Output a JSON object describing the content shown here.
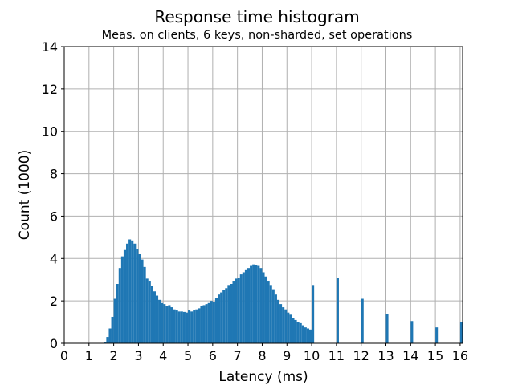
{
  "chart_data": {
    "type": "bar",
    "title": "Response time histogram",
    "subtitle": "Meas. on clients, 6 keys, non-sharded, set operations",
    "xlabel": "Latency (ms)",
    "ylabel": "Count (1000)",
    "xlim": [
      0,
      16.1
    ],
    "ylim": [
      0,
      14
    ],
    "grid": true,
    "x_ticks": [
      "0",
      "1",
      "2",
      "3",
      "4",
      "5",
      "6",
      "7",
      "8",
      "9",
      "10",
      "11",
      "12",
      "13",
      "14",
      "15",
      "16"
    ],
    "y_ticks": [
      "0",
      "2",
      "4",
      "6",
      "8",
      "10",
      "12",
      "14"
    ],
    "bin_width_ms": 0.1,
    "bins": [
      {
        "x": 1.6,
        "y": 0.05
      },
      {
        "x": 1.7,
        "y": 0.3
      },
      {
        "x": 1.8,
        "y": 0.7
      },
      {
        "x": 1.9,
        "y": 1.25
      },
      {
        "x": 2.0,
        "y": 2.1
      },
      {
        "x": 2.1,
        "y": 2.8
      },
      {
        "x": 2.2,
        "y": 3.55
      },
      {
        "x": 2.3,
        "y": 4.1
      },
      {
        "x": 2.4,
        "y": 4.4
      },
      {
        "x": 2.5,
        "y": 4.7
      },
      {
        "x": 2.6,
        "y": 4.9
      },
      {
        "x": 2.7,
        "y": 4.85
      },
      {
        "x": 2.8,
        "y": 4.7
      },
      {
        "x": 2.9,
        "y": 4.45
      },
      {
        "x": 3.0,
        "y": 4.2
      },
      {
        "x": 3.1,
        "y": 3.95
      },
      {
        "x": 3.2,
        "y": 3.6
      },
      {
        "x": 3.3,
        "y": 3.05
      },
      {
        "x": 3.4,
        "y": 2.95
      },
      {
        "x": 3.5,
        "y": 2.7
      },
      {
        "x": 3.6,
        "y": 2.45
      },
      {
        "x": 3.7,
        "y": 2.25
      },
      {
        "x": 3.8,
        "y": 2.05
      },
      {
        "x": 3.9,
        "y": 1.9
      },
      {
        "x": 4.0,
        "y": 1.85
      },
      {
        "x": 4.1,
        "y": 1.75
      },
      {
        "x": 4.2,
        "y": 1.8
      },
      {
        "x": 4.3,
        "y": 1.7
      },
      {
        "x": 4.4,
        "y": 1.6
      },
      {
        "x": 4.5,
        "y": 1.55
      },
      {
        "x": 4.6,
        "y": 1.5
      },
      {
        "x": 4.7,
        "y": 1.5
      },
      {
        "x": 4.8,
        "y": 1.48
      },
      {
        "x": 4.9,
        "y": 1.45
      },
      {
        "x": 5.0,
        "y": 1.55
      },
      {
        "x": 5.1,
        "y": 1.5
      },
      {
        "x": 5.2,
        "y": 1.55
      },
      {
        "x": 5.3,
        "y": 1.6
      },
      {
        "x": 5.4,
        "y": 1.65
      },
      {
        "x": 5.5,
        "y": 1.75
      },
      {
        "x": 5.6,
        "y": 1.8
      },
      {
        "x": 5.7,
        "y": 1.85
      },
      {
        "x": 5.8,
        "y": 1.9
      },
      {
        "x": 5.9,
        "y": 2.0
      },
      {
        "x": 6.0,
        "y": 1.95
      },
      {
        "x": 6.1,
        "y": 2.15
      },
      {
        "x": 6.2,
        "y": 2.3
      },
      {
        "x": 6.3,
        "y": 2.4
      },
      {
        "x": 6.4,
        "y": 2.5
      },
      {
        "x": 6.5,
        "y": 2.6
      },
      {
        "x": 6.6,
        "y": 2.75
      },
      {
        "x": 6.7,
        "y": 2.8
      },
      {
        "x": 6.8,
        "y": 2.95
      },
      {
        "x": 6.9,
        "y": 3.05
      },
      {
        "x": 7.0,
        "y": 3.1
      },
      {
        "x": 7.1,
        "y": 3.25
      },
      {
        "x": 7.2,
        "y": 3.35
      },
      {
        "x": 7.3,
        "y": 3.45
      },
      {
        "x": 7.4,
        "y": 3.55
      },
      {
        "x": 7.5,
        "y": 3.65
      },
      {
        "x": 7.6,
        "y": 3.72
      },
      {
        "x": 7.7,
        "y": 3.7
      },
      {
        "x": 7.8,
        "y": 3.65
      },
      {
        "x": 7.9,
        "y": 3.55
      },
      {
        "x": 8.0,
        "y": 3.35
      },
      {
        "x": 8.1,
        "y": 3.15
      },
      {
        "x": 8.2,
        "y": 2.95
      },
      {
        "x": 8.3,
        "y": 2.75
      },
      {
        "x": 8.4,
        "y": 2.55
      },
      {
        "x": 8.5,
        "y": 2.3
      },
      {
        "x": 8.6,
        "y": 2.05
      },
      {
        "x": 8.7,
        "y": 1.85
      },
      {
        "x": 8.8,
        "y": 1.7
      },
      {
        "x": 8.9,
        "y": 1.6
      },
      {
        "x": 9.0,
        "y": 1.45
      },
      {
        "x": 9.1,
        "y": 1.35
      },
      {
        "x": 9.2,
        "y": 1.2
      },
      {
        "x": 9.3,
        "y": 1.1
      },
      {
        "x": 9.4,
        "y": 1.0
      },
      {
        "x": 9.5,
        "y": 0.95
      },
      {
        "x": 9.6,
        "y": 0.85
      },
      {
        "x": 9.7,
        "y": 0.75
      },
      {
        "x": 9.8,
        "y": 0.7
      },
      {
        "x": 9.9,
        "y": 0.65
      },
      {
        "x": 10.0,
        "y": 2.75
      },
      {
        "x": 11.0,
        "y": 3.1
      },
      {
        "x": 12.0,
        "y": 2.1
      },
      {
        "x": 13.0,
        "y": 1.4
      },
      {
        "x": 14.0,
        "y": 1.05
      },
      {
        "x": 15.0,
        "y": 0.75
      },
      {
        "x": 16.0,
        "y": 1.0
      }
    ]
  }
}
